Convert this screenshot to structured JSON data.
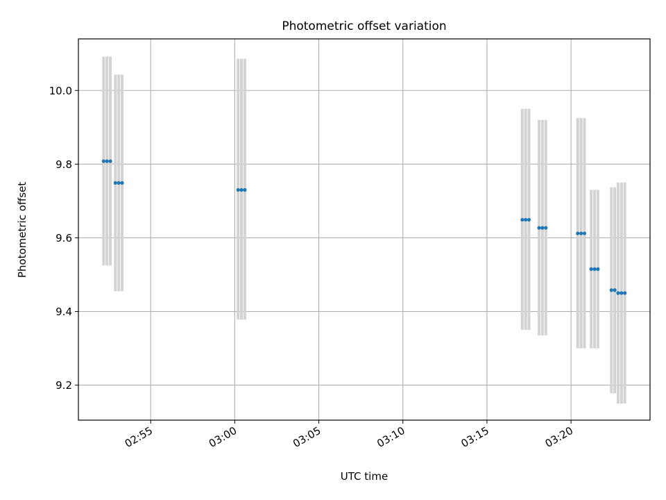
{
  "chart_data": {
    "type": "scatter",
    "title": "Photometric offset variation",
    "xlabel": "UTC time",
    "ylabel": "Photometric offset",
    "x_tick_labels": [
      "02:55",
      "03:00",
      "03:05",
      "03:10",
      "03:15",
      "03:20"
    ],
    "x_ticks_minutes": [
      0,
      5,
      10,
      15,
      20,
      25
    ],
    "y_ticks": [
      9.2,
      9.4,
      9.6,
      9.8,
      10.0
    ],
    "xlim_minutes": [
      -4.3,
      29.7
    ],
    "ylim": [
      9.105,
      10.14
    ],
    "grid": true,
    "colors": {
      "points": "#1f77b4",
      "error_bars": "#d3d3d3"
    },
    "groups": [
      {
        "x": [
          -2.8,
          -2.6,
          -2.4
        ],
        "y": 9.808,
        "err_low": 9.525,
        "err_high": 10.092
      },
      {
        "x": [
          -2.1,
          -1.9,
          -1.7
        ],
        "y": 9.749,
        "err_low": 9.455,
        "err_high": 10.043
      },
      {
        "x": [
          5.2,
          5.4,
          5.6
        ],
        "y": 9.73,
        "err_low": 9.378,
        "err_high": 10.086
      },
      {
        "x": [
          22.1,
          22.3,
          22.5
        ],
        "y": 9.649,
        "err_low": 9.35,
        "err_high": 9.95
      },
      {
        "x": [
          23.1,
          23.3,
          23.5
        ],
        "y": 9.627,
        "err_low": 9.335,
        "err_high": 9.92
      },
      {
        "x": [
          25.4,
          25.6,
          25.8
        ],
        "y": 9.612,
        "err_low": 9.3,
        "err_high": 9.925
      },
      {
        "x": [
          26.2,
          26.4
        ],
        "y": 9.515,
        "err_low": 9.3,
        "err_high": 9.73
      },
      {
        "x": [
          26.6
        ],
        "y": 9.515,
        "err_low": 9.3,
        "err_high": 9.73
      },
      {
        "x": [
          27.4,
          27.6
        ],
        "y": 9.458,
        "err_low": 9.178,
        "err_high": 9.737
      },
      {
        "x": [
          27.8,
          28.0,
          28.2
        ],
        "y": 9.45,
        "err_low": 9.15,
        "err_high": 9.75
      }
    ]
  }
}
